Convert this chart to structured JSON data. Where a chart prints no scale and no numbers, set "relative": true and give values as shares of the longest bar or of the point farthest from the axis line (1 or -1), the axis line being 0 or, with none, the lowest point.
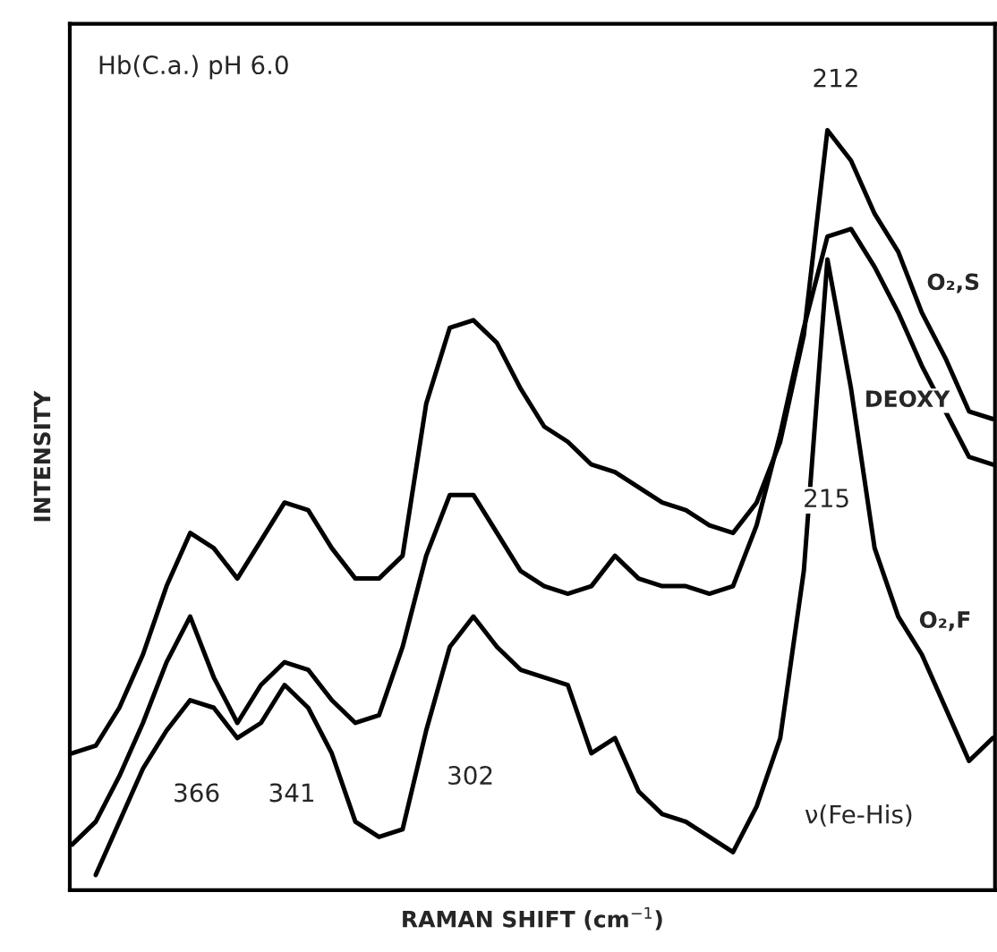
{
  "chart_data": {
    "type": "line",
    "relative": true,
    "xlabel": "RAMAN SHIFT (cm$^{−1}$)",
    "ylabel": "INTENSITY",
    "categories": [
      null,
      null,
      null,
      null,
      null,
      null,
      null,
      null,
      null,
      null,
      null,
      null,
      null,
      null,
      null,
      null,
      null,
      null,
      null,
      null,
      null,
      null,
      null,
      null,
      null,
      null,
      null,
      null,
      null,
      null,
      null,
      null,
      null,
      null,
      null,
      null,
      null,
      null,
      null,
      null
    ],
    "grid": false,
    "legend": false,
    "marker": "none",
    "line_style": "solid",
    "annotations": [
      "Hb(C.a.) pH 6.0",
      "212",
      "215",
      "366",
      "341",
      "302",
      "ν(Fe-His)"
    ],
    "series": [
      {
        "name": "O₂,S",
        "color": "#000000",
        "values": [
          0.18,
          0.19,
          0.24,
          0.31,
          0.4,
          0.47,
          0.45,
          0.41,
          0.46,
          0.51,
          0.5,
          0.45,
          0.41,
          0.41,
          0.44,
          0.64,
          0.74,
          0.75,
          0.72,
          0.66,
          0.61,
          0.59,
          0.56,
          0.55,
          0.53,
          0.51,
          0.5,
          0.48,
          0.47,
          0.51,
          0.59,
          0.73,
          1.0,
          0.96,
          0.89,
          0.84,
          0.76,
          0.7,
          0.63,
          0.62
        ]
      },
      {
        "name": "DEOXY",
        "color": "#000000",
        "values": [
          0.06,
          0.09,
          0.15,
          0.22,
          0.3,
          0.36,
          0.28,
          0.22,
          0.27,
          0.3,
          0.29,
          0.25,
          0.22,
          0.23,
          0.32,
          0.44,
          0.52,
          0.52,
          0.47,
          0.42,
          0.4,
          0.39,
          0.4,
          0.44,
          0.41,
          0.4,
          0.4,
          0.39,
          0.4,
          0.48,
          0.6,
          0.74,
          0.86,
          0.87,
          0.82,
          0.76,
          0.69,
          0.63,
          0.57,
          0.56
        ]
      },
      {
        "name": "O₂,F",
        "color": "#000000",
        "values": [
          null,
          0.02,
          0.09,
          0.16,
          0.21,
          0.25,
          0.24,
          0.2,
          0.22,
          0.27,
          0.24,
          0.18,
          0.09,
          0.07,
          0.08,
          0.21,
          0.32,
          0.36,
          0.32,
          0.29,
          0.28,
          0.27,
          0.18,
          0.2,
          0.13,
          0.1,
          0.09,
          0.07,
          0.05,
          0.11,
          0.2,
          0.42,
          0.83,
          0.66,
          0.45,
          0.36,
          0.31,
          0.24,
          0.17,
          0.2
        ]
      }
    ]
  }
}
